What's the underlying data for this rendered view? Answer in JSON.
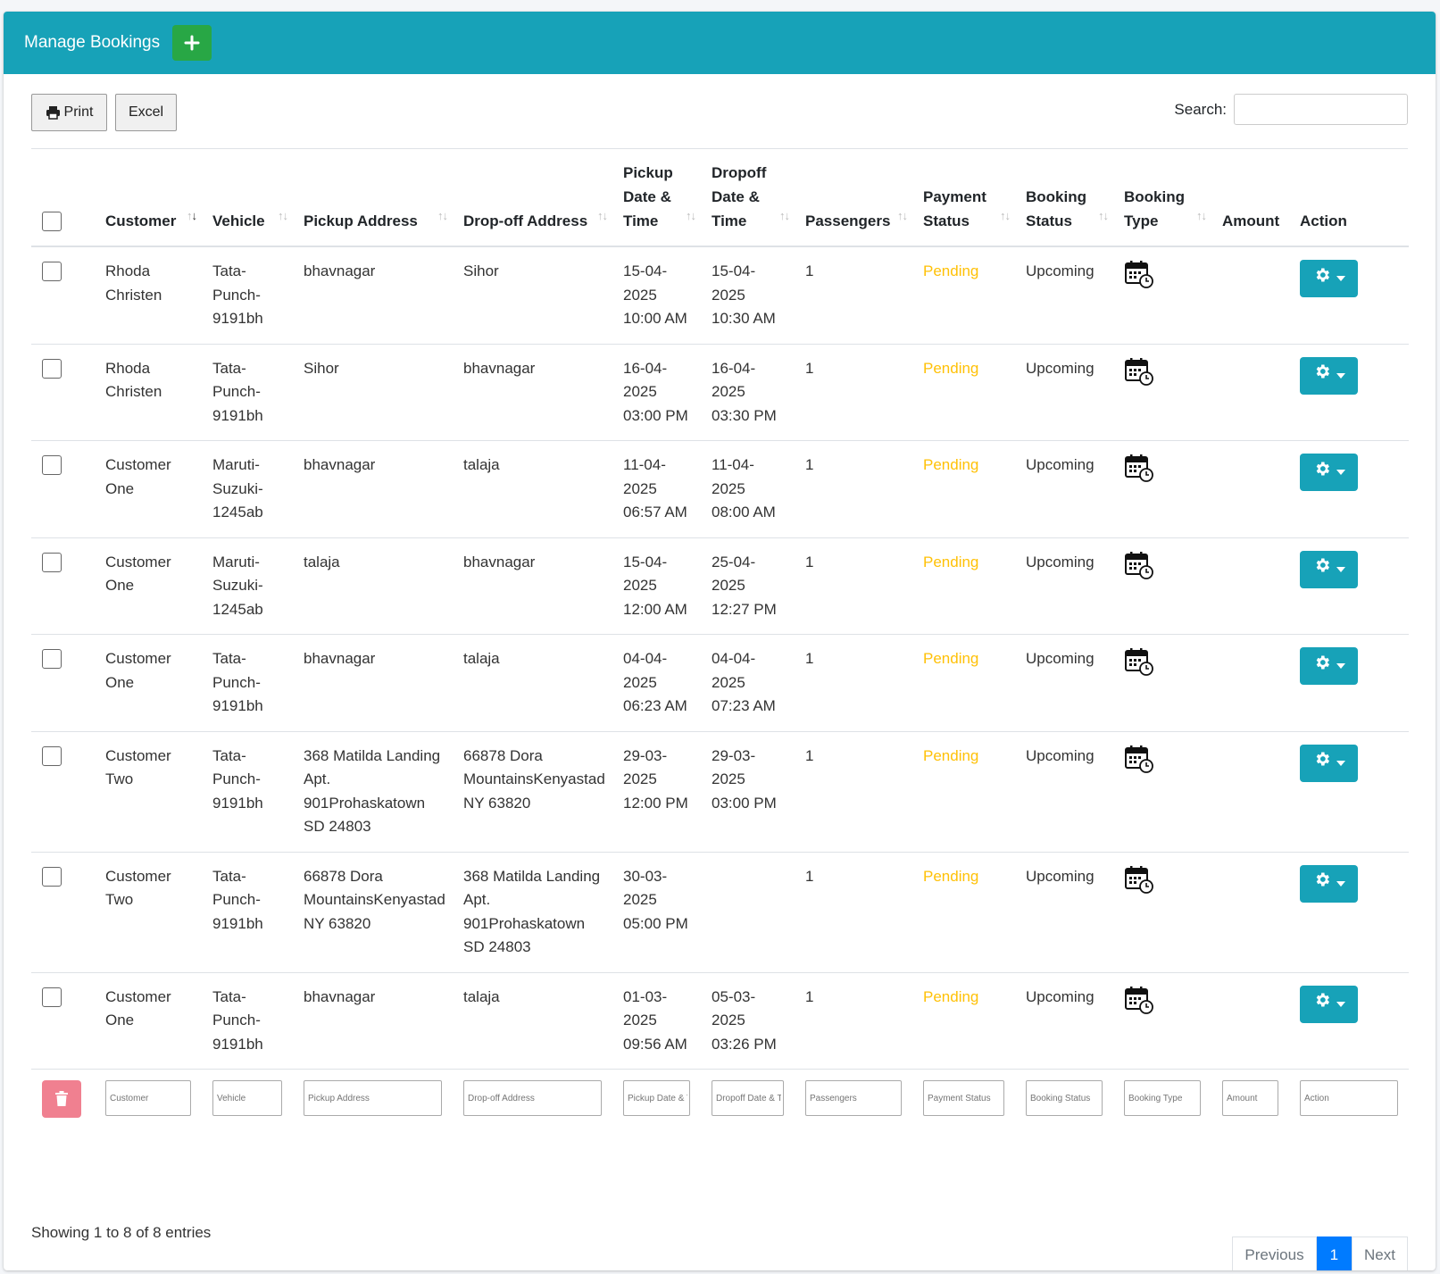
{
  "header": {
    "title": "Manage Bookings",
    "add_icon": "plus-icon"
  },
  "toolbar": {
    "print_label": "Print",
    "excel_label": "Excel",
    "search_label": "Search:",
    "search_value": ""
  },
  "table": {
    "columns": [
      {
        "key": "customer",
        "label": "Customer",
        "sorted": "desc"
      },
      {
        "key": "vehicle",
        "label": "Vehicle"
      },
      {
        "key": "pickup_address",
        "label": "Pickup Address"
      },
      {
        "key": "dropoff_address",
        "label": "Drop-off Address"
      },
      {
        "key": "pickup_datetime",
        "label": "Pickup Date & Time"
      },
      {
        "key": "dropoff_datetime",
        "label": "Dropoff Date & Time"
      },
      {
        "key": "passengers",
        "label": "Passengers"
      },
      {
        "key": "payment_status",
        "label": "Payment Status"
      },
      {
        "key": "booking_status",
        "label": "Booking Status"
      },
      {
        "key": "booking_type",
        "label": "Booking Type"
      },
      {
        "key": "amount",
        "label": "Amount"
      },
      {
        "key": "action",
        "label": "Action"
      }
    ],
    "rows": [
      {
        "customer": "Rhoda Christen",
        "vehicle": "Tata-Punch-9191bh",
        "pickup_address": "bhavnagar",
        "dropoff_address": "Sihor",
        "pickup_datetime": "15-04-2025 10:00 AM",
        "dropoff_datetime": "15-04-2025 10:30 AM",
        "passengers": "1",
        "payment_status": "Pending",
        "booking_status": "Upcoming",
        "booking_type_icon": "calendar-clock-icon",
        "amount": ""
      },
      {
        "customer": "Rhoda Christen",
        "vehicle": "Tata-Punch-9191bh",
        "pickup_address": "Sihor",
        "dropoff_address": "bhavnagar",
        "pickup_datetime": "16-04-2025 03:00 PM",
        "dropoff_datetime": "16-04-2025 03:30 PM",
        "passengers": "1",
        "payment_status": "Pending",
        "booking_status": "Upcoming",
        "booking_type_icon": "calendar-clock-icon",
        "amount": ""
      },
      {
        "customer": "Customer One",
        "vehicle": "Maruti-Suzuki-1245ab",
        "pickup_address": "bhavnagar",
        "dropoff_address": "talaja",
        "pickup_datetime": "11-04-2025 06:57 AM",
        "dropoff_datetime": "11-04-2025 08:00 AM",
        "passengers": "1",
        "payment_status": "Pending",
        "booking_status": "Upcoming",
        "booking_type_icon": "calendar-clock-icon",
        "amount": ""
      },
      {
        "customer": "Customer One",
        "vehicle": "Maruti-Suzuki-1245ab",
        "pickup_address": "talaja",
        "dropoff_address": "bhavnagar",
        "pickup_datetime": "15-04-2025 12:00 AM",
        "dropoff_datetime": "25-04-2025 12:27 PM",
        "passengers": "1",
        "payment_status": "Pending",
        "booking_status": "Upcoming",
        "booking_type_icon": "calendar-clock-icon",
        "amount": ""
      },
      {
        "customer": "Customer One",
        "vehicle": "Tata-Punch-9191bh",
        "pickup_address": "bhavnagar",
        "dropoff_address": "talaja",
        "pickup_datetime": "04-04-2025 06:23 AM",
        "dropoff_datetime": "04-04-2025 07:23 AM",
        "passengers": "1",
        "payment_status": "Pending",
        "booking_status": "Upcoming",
        "booking_type_icon": "calendar-clock-icon",
        "amount": ""
      },
      {
        "customer": "Customer Two",
        "vehicle": "Tata-Punch-9191bh",
        "pickup_address": "368 Matilda Landing Apt. 901Prohaskatown SD 24803",
        "dropoff_address": "66878 Dora MountainsKenyastad NY 63820",
        "pickup_datetime": "29-03-2025 12:00 PM",
        "dropoff_datetime": "29-03-2025 03:00 PM",
        "passengers": "1",
        "payment_status": "Pending",
        "booking_status": "Upcoming",
        "booking_type_icon": "calendar-clock-icon",
        "amount": ""
      },
      {
        "customer": "Customer Two",
        "vehicle": "Tata-Punch-9191bh",
        "pickup_address": "66878 Dora MountainsKenyastad NY 63820",
        "dropoff_address": "368 Matilda Landing Apt. 901Prohaskatown SD 24803",
        "pickup_datetime": "30-03-2025 05:00 PM",
        "dropoff_datetime": "",
        "passengers": "1",
        "payment_status": "Pending",
        "booking_status": "Upcoming",
        "booking_type_icon": "calendar-clock-icon",
        "amount": ""
      },
      {
        "customer": "Customer One",
        "vehicle": "Tata-Punch-9191bh",
        "pickup_address": "bhavnagar",
        "dropoff_address": "talaja",
        "pickup_datetime": "01-03-2025 09:56 AM",
        "dropoff_datetime": "05-03-2025 03:26 PM",
        "passengers": "1",
        "payment_status": "Pending",
        "booking_status": "Upcoming",
        "booking_type_icon": "calendar-clock-icon",
        "amount": ""
      }
    ],
    "filters": [
      {
        "key": "customer",
        "placeholder": "Customer"
      },
      {
        "key": "vehicle",
        "placeholder": "Vehicle"
      },
      {
        "key": "pickup_address",
        "placeholder": "Pickup Address"
      },
      {
        "key": "dropoff_address",
        "placeholder": "Drop-off Address"
      },
      {
        "key": "pickup_datetime",
        "placeholder": "Pickup Date & Time"
      },
      {
        "key": "dropoff_datetime",
        "placeholder": "Dropoff Date & Time"
      },
      {
        "key": "passengers",
        "placeholder": "Passengers"
      },
      {
        "key": "payment_status",
        "placeholder": "Payment Status"
      },
      {
        "key": "booking_status",
        "placeholder": "Booking Status"
      },
      {
        "key": "booking_type",
        "placeholder": "Booking Type"
      },
      {
        "key": "amount",
        "placeholder": "Amount"
      },
      {
        "key": "action",
        "placeholder": "Action"
      }
    ]
  },
  "footer": {
    "info": "Showing 1 to 8 of 8 entries",
    "pagination": {
      "previous": "Previous",
      "current": "1",
      "next": "Next"
    }
  },
  "colors": {
    "header": "#17a2b8",
    "add_button": "#28a745",
    "pending": "#ffc107",
    "delete_button": "#f08090",
    "page_active": "#007bff"
  }
}
